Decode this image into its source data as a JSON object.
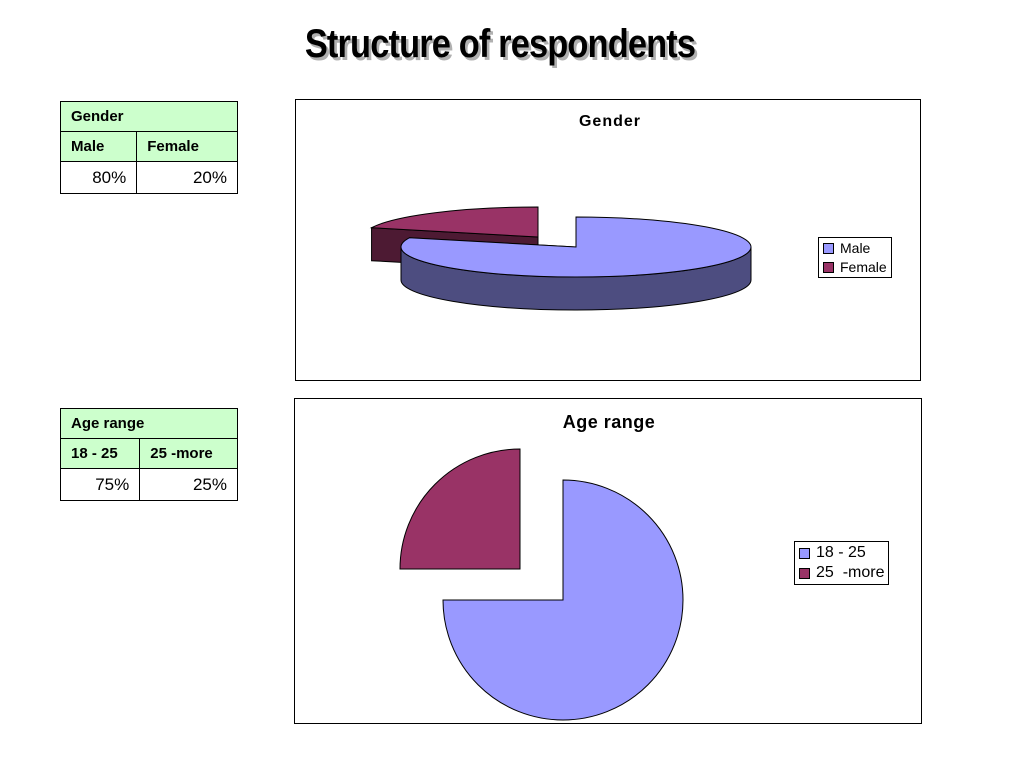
{
  "slide": {
    "title": "Structure of respondents"
  },
  "gender_table": {
    "header": "Gender",
    "columns": [
      "Male",
      "Female"
    ],
    "values": [
      "80%",
      "20%"
    ]
  },
  "age_table": {
    "header": "Age range",
    "columns": [
      "18 - 25",
      "25  -more"
    ],
    "values": [
      "75%",
      "25%"
    ]
  },
  "chart_data": [
    {
      "type": "pie",
      "style": "3d-exploded",
      "title": "Gender",
      "categories": [
        "Male",
        "Female"
      ],
      "values": [
        80,
        20
      ],
      "colors": [
        "#9999ff",
        "#993366"
      ],
      "legend": "right"
    },
    {
      "type": "pie",
      "style": "exploded",
      "title": "Age range",
      "categories": [
        "18 - 25",
        "25  -more"
      ],
      "values": [
        75,
        25
      ],
      "colors": [
        "#9999ff",
        "#993366"
      ],
      "legend": "right"
    }
  ]
}
